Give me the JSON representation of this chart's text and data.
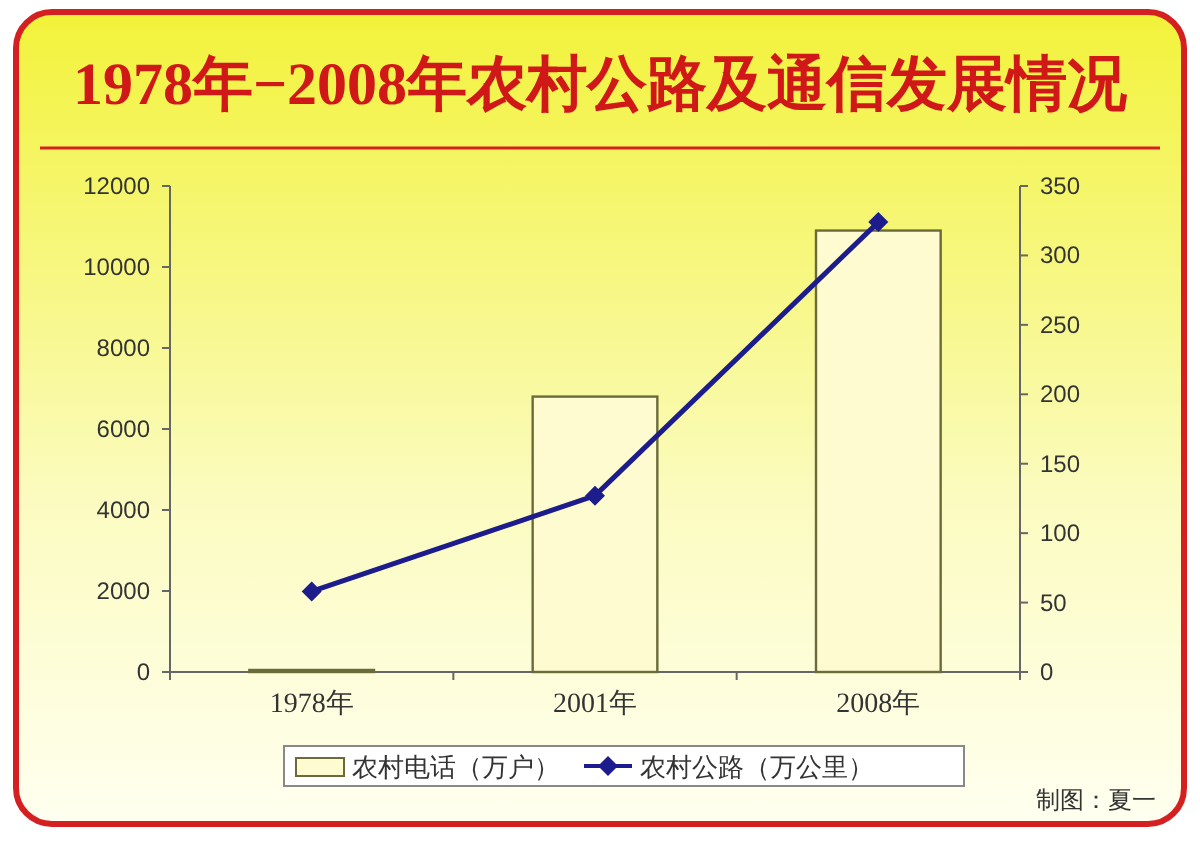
{
  "chart_data": {
    "type": "bar",
    "title": "1978年−2008年农村公路及通信发展情况",
    "categories": [
      "1978年",
      "2001年",
      "2008年"
    ],
    "series": [
      {
        "name": "农村电话（万户）",
        "color": "#fffbd0",
        "values": [
          50,
          6800,
          10900
        ]
      },
      {
        "name": "农村公路（万公里）",
        "type": "line",
        "axis": "y2",
        "color": "#1c1c8c",
        "marker": "diamond",
        "values": [
          58,
          127,
          324
        ]
      }
    ],
    "ylim": [
      0,
      12000
    ],
    "yticks": [
      0,
      2000,
      4000,
      6000,
      8000,
      10000,
      12000
    ],
    "y2lim": [
      0,
      350
    ],
    "y2ticks": [
      0,
      50,
      100,
      150,
      200,
      250,
      300,
      350
    ],
    "grid": false,
    "legend": "bottom",
    "annotations": [
      "制图：夏一"
    ]
  }
}
